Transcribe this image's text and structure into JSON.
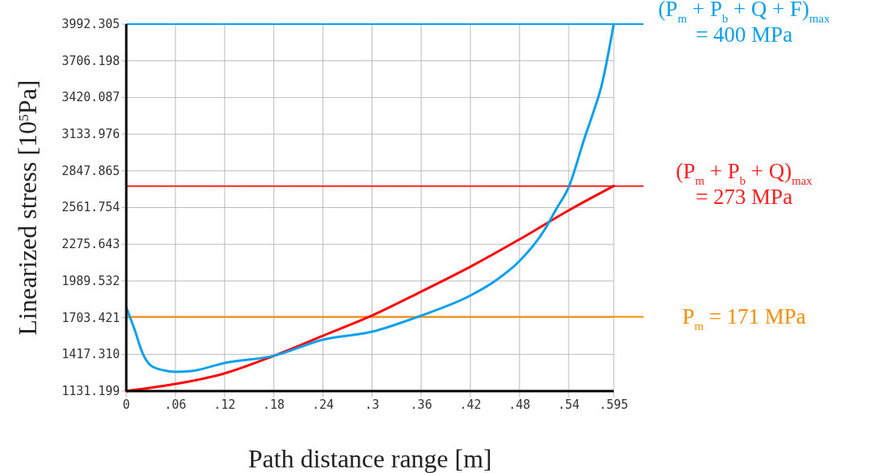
{
  "chart_data": {
    "type": "line",
    "xlabel": "Path distance range [m]",
    "ylabel": "Linearized stress [10$^{5}$Pa]",
    "xlim": [
      0,
      0.595
    ],
    "ylim": [
      1131.199,
      3992.305
    ],
    "xticks": [
      0,
      {
        "value": 0.06,
        "label": ".06"
      },
      {
        "value": 0.12,
        "label": ".12"
      },
      {
        "value": 0.18,
        "label": ".18"
      },
      {
        "value": 0.24,
        "label": ".24"
      },
      {
        "value": 0.3,
        "label": ".3"
      },
      {
        "value": 0.36,
        "label": ".36"
      },
      {
        "value": 0.42,
        "label": ".42"
      },
      {
        "value": 0.48,
        "label": ".48"
      },
      {
        "value": 0.54,
        "label": ".54"
      },
      {
        "value": 0.595,
        "label": ".595"
      }
    ],
    "yticks": [
      1131.199,
      {
        "value": 1417.31,
        "label": "1417.310"
      },
      1703.421,
      1989.532,
      2275.643,
      2561.754,
      2847.865,
      3133.976,
      3420.087,
      3706.198,
      3992.305
    ],
    "grid": true,
    "line_style": "solid",
    "marker": "none",
    "series": [
      {
        "color": "#ff0000",
        "x": [
          0,
          0.06,
          0.12,
          0.18,
          0.24,
          0.3,
          0.36,
          0.42,
          0.48,
          0.54,
          0.595
        ],
        "values": [
          1131.2,
          1187,
          1269,
          1406,
          1563,
          1720,
          1907,
          2101,
          2314,
          2540,
          2730
        ]
      },
      {
        "color": "#0ba0ee",
        "x": [
          0,
          0.01,
          0.02,
          0.03,
          0.045,
          0.06,
          0.08,
          0.12,
          0.18,
          0.24,
          0.3,
          0.36,
          0.42,
          0.45,
          0.48,
          0.51,
          0.525,
          0.54,
          0.56,
          0.57,
          0.58,
          0.595
        ],
        "values": [
          1782,
          1613,
          1425,
          1331,
          1294,
          1281,
          1288,
          1350,
          1406,
          1532,
          1594,
          1720,
          1876,
          1989,
          2145,
          2383,
          2552,
          2721,
          3116,
          3303,
          3510,
          3992
        ]
      }
    ],
    "ref_lines": [
      {
        "axis": "y",
        "value": 3992.305,
        "color": "#0ba0ee"
      },
      {
        "axis": "y",
        "value": 2730,
        "color": "#ff2020"
      },
      {
        "axis": "y",
        "value": 1710,
        "color": "#ff8c00"
      }
    ],
    "annotations": [
      "(P$_{m}$ + P$_{b}$ + Q + F)$_{max}$\n= 400 MPa",
      "(P$_{m}$ + P$_{b}$ + Q)$_{max}$\n= 273 MPa",
      "P$_{m}$ = 171 MPa"
    ]
  }
}
